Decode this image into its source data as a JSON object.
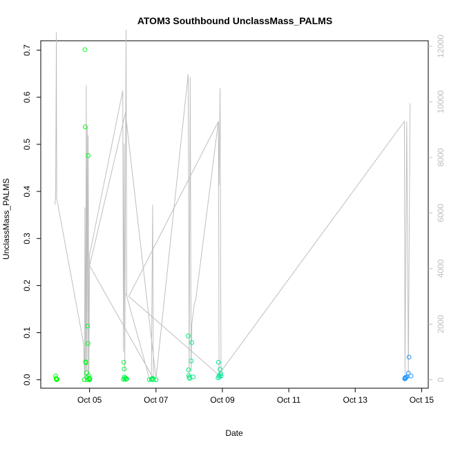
{
  "chart_data": {
    "type": "scatter",
    "title": "ATOM3 Southbound UnclassMass_PALMS",
    "xlabel": "Date",
    "ylabel": "UnclassMass_PALMS",
    "x_unit": "days (Oct 4 0:00 = 4.0)",
    "xlim": [
      3.53,
      15.2
    ],
    "ylim": [
      -0.018,
      0.72
    ],
    "y2lim": [
      -305,
      12200
    ],
    "x_ticks": [
      {
        "value": 5,
        "label": "Oct 05"
      },
      {
        "value": 7,
        "label": "Oct 07"
      },
      {
        "value": 9,
        "label": "Oct 09"
      },
      {
        "value": 11,
        "label": "Oct 11"
      },
      {
        "value": 13,
        "label": "Oct 13"
      },
      {
        "value": 15,
        "label": "Oct 15"
      }
    ],
    "y_ticks": [
      {
        "value": 0.0,
        "label": "0.0"
      },
      {
        "value": 0.1,
        "label": "0.1"
      },
      {
        "value": 0.2,
        "label": "0.2"
      },
      {
        "value": 0.3,
        "label": "0.3"
      },
      {
        "value": 0.4,
        "label": "0.4"
      },
      {
        "value": 0.5,
        "label": "0.5"
      },
      {
        "value": 0.6,
        "label": "0.6"
      },
      {
        "value": 0.7,
        "label": "0.7"
      }
    ],
    "y2_ticks": [
      {
        "value": 0,
        "label": "0"
      },
      {
        "value": 2000,
        "label": "2000"
      },
      {
        "value": 4000,
        "label": "4000"
      },
      {
        "value": 6000,
        "label": "6000"
      },
      {
        "value": 8000,
        "label": "8000"
      },
      {
        "value": 10000,
        "label": "10000"
      },
      {
        "value": 12000,
        "label": "12000"
      }
    ],
    "grid": false,
    "colors": {
      "points_start": "#00ff00",
      "points_mid": "#00e5a0",
      "points_end": "#1e90ff",
      "altitude_line": "#bebebe"
    },
    "points": [
      {
        "x": 3.98,
        "y": 0.008
      },
      {
        "x": 3.99,
        "y": 0.003
      },
      {
        "x": 4.0,
        "y": 0.001
      },
      {
        "x": 4.01,
        "y": 0.0
      },
      {
        "x": 4.02,
        "y": 0.001
      },
      {
        "x": 4.84,
        "y": 0.0
      },
      {
        "x": 4.86,
        "y": 0.701
      },
      {
        "x": 4.87,
        "y": 0.537
      },
      {
        "x": 4.88,
        "y": 0.038
      },
      {
        "x": 4.89,
        "y": 0.036
      },
      {
        "x": 4.91,
        "y": 0.015
      },
      {
        "x": 4.92,
        "y": 0.005
      },
      {
        "x": 4.93,
        "y": 0.0
      },
      {
        "x": 4.94,
        "y": 0.114
      },
      {
        "x": 4.95,
        "y": 0.077
      },
      {
        "x": 4.96,
        "y": 0.476
      },
      {
        "x": 4.97,
        "y": 0.009
      },
      {
        "x": 4.98,
        "y": 0.003
      },
      {
        "x": 4.99,
        "y": 0.001
      },
      {
        "x": 5.0,
        "y": 0.0
      },
      {
        "x": 5.01,
        "y": 0.002
      },
      {
        "x": 6.02,
        "y": 0.001
      },
      {
        "x": 6.03,
        "y": 0.037
      },
      {
        "x": 6.04,
        "y": 0.023
      },
      {
        "x": 6.05,
        "y": 0.006
      },
      {
        "x": 6.06,
        "y": 0.002
      },
      {
        "x": 6.08,
        "y": 0.004
      },
      {
        "x": 6.1,
        "y": 0.001
      },
      {
        "x": 6.12,
        "y": 0.002
      },
      {
        "x": 6.8,
        "y": 0.0
      },
      {
        "x": 6.86,
        "y": 0.001
      },
      {
        "x": 6.88,
        "y": 0.002
      },
      {
        "x": 6.9,
        "y": 0.003
      },
      {
        "x": 6.92,
        "y": 0.0
      },
      {
        "x": 7.0,
        "y": 0.0
      },
      {
        "x": 7.97,
        "y": 0.093
      },
      {
        "x": 7.98,
        "y": 0.021
      },
      {
        "x": 7.99,
        "y": 0.009
      },
      {
        "x": 8.0,
        "y": 0.005
      },
      {
        "x": 8.02,
        "y": 0.003
      },
      {
        "x": 8.06,
        "y": 0.04
      },
      {
        "x": 8.08,
        "y": 0.079
      },
      {
        "x": 8.12,
        "y": 0.006
      },
      {
        "x": 8.87,
        "y": 0.004
      },
      {
        "x": 8.88,
        "y": 0.037
      },
      {
        "x": 8.9,
        "y": 0.009
      },
      {
        "x": 8.91,
        "y": 0.006
      },
      {
        "x": 8.93,
        "y": 0.022
      },
      {
        "x": 8.95,
        "y": 0.013
      },
      {
        "x": 8.96,
        "y": 0.008
      },
      {
        "x": 14.49,
        "y": 0.002
      },
      {
        "x": 14.5,
        "y": 0.004
      },
      {
        "x": 14.51,
        "y": 0.003
      },
      {
        "x": 14.52,
        "y": 0.005
      },
      {
        "x": 14.55,
        "y": 0.006
      },
      {
        "x": 14.6,
        "y": 0.014
      },
      {
        "x": 14.62,
        "y": 0.048
      },
      {
        "x": 14.68,
        "y": 0.008
      }
    ],
    "altitude_line": [
      [
        3.96,
        6300
      ],
      [
        3.98,
        6700
      ],
      [
        4.0,
        12500
      ],
      [
        4.01,
        6600
      ],
      [
        4.0,
        6600
      ],
      [
        4.82,
        1300
      ],
      [
        4.85,
        50
      ],
      [
        4.86,
        6200
      ],
      [
        4.88,
        80
      ],
      [
        4.9,
        10600
      ],
      [
        4.91,
        300
      ],
      [
        4.93,
        9100
      ],
      [
        4.95,
        100
      ],
      [
        4.96,
        8800
      ],
      [
        4.98,
        60
      ],
      [
        5.0,
        4500
      ],
      [
        6.0,
        10400
      ],
      [
        6.02,
        1000
      ],
      [
        6.04,
        8500
      ],
      [
        6.06,
        300
      ],
      [
        6.1,
        12600
      ],
      [
        6.12,
        3000
      ],
      [
        6.1,
        3100
      ],
      [
        6.8,
        50
      ],
      [
        6.86,
        30
      ],
      [
        6.9,
        6300
      ],
      [
        6.92,
        50
      ],
      [
        5.0,
        4100
      ],
      [
        6.08,
        9600
      ],
      [
        7.0,
        40
      ],
      [
        7.97,
        11000
      ],
      [
        8.0,
        100
      ],
      [
        8.03,
        10900
      ],
      [
        8.06,
        300
      ],
      [
        8.08,
        2000
      ],
      [
        8.15,
        2700
      ],
      [
        8.2,
        2900
      ],
      [
        8.88,
        9300
      ],
      [
        8.9,
        7000
      ],
      [
        8.93,
        10500
      ],
      [
        8.96,
        100
      ],
      [
        6.18,
        3000
      ],
      [
        8.88,
        9300
      ],
      [
        8.9,
        200
      ],
      [
        14.48,
        9300
      ],
      [
        14.5,
        200
      ],
      [
        14.55,
        9300
      ],
      [
        14.6,
        200
      ],
      [
        14.65,
        9950
      ]
    ]
  }
}
